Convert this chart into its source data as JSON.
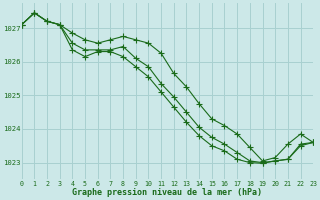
{
  "title": "Graphe pression niveau de la mer (hPa)",
  "bg_color": "#cce8e8",
  "grid_color": "#a8d0d0",
  "line_color": "#1a6b1a",
  "xlim": [
    0,
    23
  ],
  "ylim": [
    1022.5,
    1027.75
  ],
  "yticks": [
    1023,
    1024,
    1025,
    1026,
    1027
  ],
  "xticks": [
    0,
    1,
    2,
    3,
    4,
    5,
    6,
    7,
    8,
    9,
    10,
    11,
    12,
    13,
    14,
    15,
    16,
    17,
    18,
    19,
    20,
    21,
    22,
    23
  ],
  "series": [
    [
      1027.1,
      1027.45,
      1027.2,
      1027.1,
      1026.85,
      1026.65,
      1026.55,
      1026.65,
      1026.75,
      1026.65,
      1026.55,
      1026.25,
      1025.65,
      1025.25,
      1024.75,
      1024.3,
      1024.1,
      1023.85,
      1023.45,
      1023.05,
      1023.15,
      1023.55,
      1023.85,
      1023.6
    ],
    [
      1027.1,
      1027.45,
      1027.2,
      1027.1,
      1026.55,
      1026.35,
      1026.35,
      1026.35,
      1026.45,
      1026.1,
      1025.85,
      1025.35,
      1024.95,
      1024.5,
      1024.05,
      1023.75,
      1023.55,
      1023.3,
      1023.05,
      1023.0,
      1023.05,
      1023.1,
      1023.55,
      1023.6
    ],
    [
      1027.1,
      1027.45,
      1027.2,
      1027.1,
      1026.35,
      1026.15,
      1026.3,
      1026.3,
      1026.15,
      1025.85,
      1025.55,
      1025.1,
      1024.65,
      1024.2,
      1023.8,
      1023.5,
      1023.35,
      1023.1,
      1023.0,
      1022.98,
      1023.05,
      1023.1,
      1023.5,
      1023.6
    ]
  ]
}
